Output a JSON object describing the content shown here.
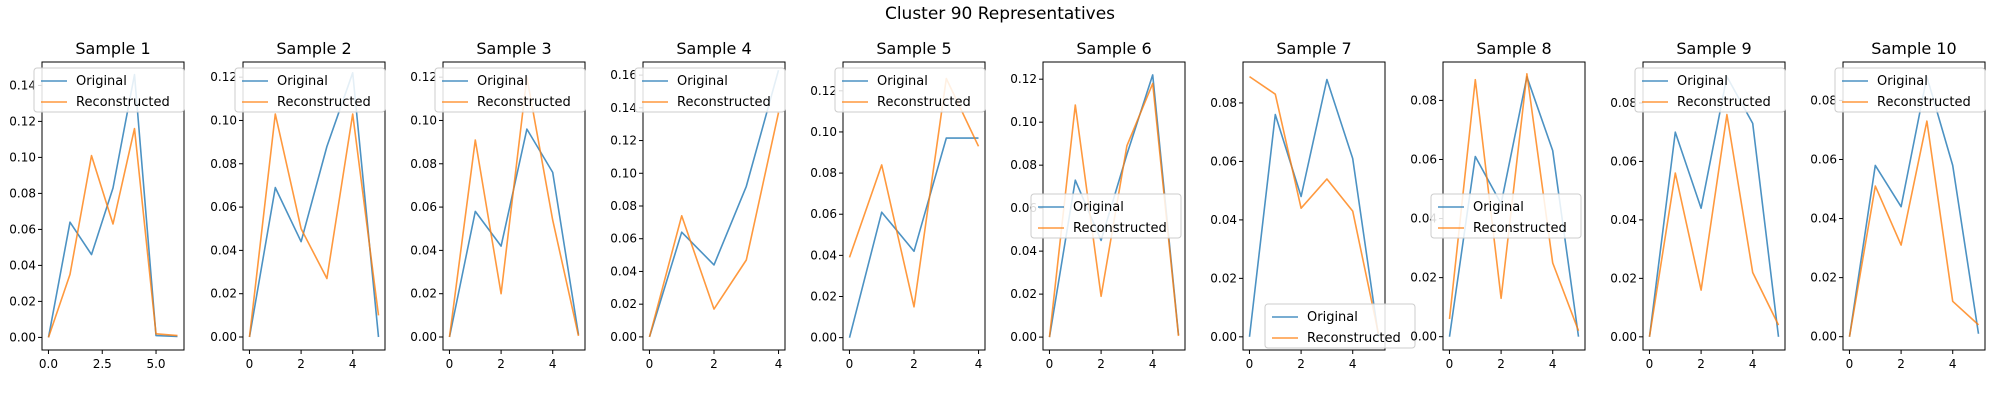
{
  "figure": {
    "title": "Cluster 90 Representatives"
  },
  "colors": {
    "original": "#1f77b4",
    "reconstructed": "#ff7f0e"
  },
  "chart_data": [
    {
      "type": "line",
      "title": "Sample 1",
      "xlim": [
        -0.3,
        6.3
      ],
      "ylim": [
        -0.007,
        0.153
      ],
      "xticks": [
        0,
        2.5,
        5
      ],
      "xtick_labels": [
        "0.0",
        "2.5",
        "5.0"
      ],
      "yticks": [
        0,
        0.02,
        0.04,
        0.06,
        0.08,
        0.1,
        0.12,
        0.14
      ],
      "ytick_labels": [
        "0.00",
        "0.02",
        "0.04",
        "0.06",
        "0.08",
        "0.10",
        "0.12",
        "0.14"
      ],
      "legend": "upper-left",
      "series": [
        {
          "name": "Original",
          "x": [
            0,
            1,
            2,
            3,
            4,
            5,
            6
          ],
          "values": [
            0,
            0.064,
            0.046,
            0.083,
            0.146,
            0.001,
            0.0005
          ]
        },
        {
          "name": "Reconstructed",
          "x": [
            0,
            1,
            2,
            3,
            4,
            5,
            6
          ],
          "values": [
            0,
            0.035,
            0.101,
            0.063,
            0.116,
            0.002,
            0.001
          ]
        }
      ]
    },
    {
      "type": "line",
      "title": "Sample 2",
      "xlim": [
        -0.25,
        5.25
      ],
      "ylim": [
        -0.006,
        0.127
      ],
      "xticks": [
        0,
        2,
        4
      ],
      "xtick_labels": [
        "0",
        "2",
        "4"
      ],
      "yticks": [
        0,
        0.02,
        0.04,
        0.06,
        0.08,
        0.1,
        0.12
      ],
      "ytick_labels": [
        "0.00",
        "0.02",
        "0.04",
        "0.06",
        "0.08",
        "0.10",
        "0.12"
      ],
      "legend": "upper-left",
      "series": [
        {
          "name": "Original",
          "x": [
            0,
            1,
            2,
            3,
            4,
            5
          ],
          "values": [
            0,
            0.069,
            0.044,
            0.088,
            0.122,
            0.0
          ]
        },
        {
          "name": "Reconstructed",
          "x": [
            0,
            1,
            2,
            3,
            4,
            5
          ],
          "values": [
            0,
            0.103,
            0.05,
            0.027,
            0.103,
            0.01
          ]
        }
      ]
    },
    {
      "type": "line",
      "title": "Sample 3",
      "xlim": [
        -0.25,
        5.25
      ],
      "ylim": [
        -0.006,
        0.127
      ],
      "xticks": [
        0,
        2,
        4
      ],
      "xtick_labels": [
        "0",
        "2",
        "4"
      ],
      "yticks": [
        0,
        0.02,
        0.04,
        0.06,
        0.08,
        0.1,
        0.12
      ],
      "ytick_labels": [
        "0.00",
        "0.02",
        "0.04",
        "0.06",
        "0.08",
        "0.10",
        "0.12"
      ],
      "legend": "upper-left",
      "series": [
        {
          "name": "Original",
          "x": [
            0,
            1,
            2,
            3,
            4,
            5
          ],
          "values": [
            0,
            0.058,
            0.042,
            0.096,
            0.076,
            0.001
          ]
        },
        {
          "name": "Reconstructed",
          "x": [
            0,
            1,
            2,
            3,
            4,
            5
          ],
          "values": [
            0,
            0.091,
            0.02,
            0.12,
            0.054,
            0.0005
          ]
        }
      ]
    },
    {
      "type": "line",
      "title": "Sample 4",
      "xlim": [
        -0.2,
        4.2
      ],
      "ylim": [
        -0.008,
        0.168
      ],
      "xticks": [
        0,
        2,
        4
      ],
      "xtick_labels": [
        "0",
        "2",
        "4"
      ],
      "yticks": [
        0,
        0.02,
        0.04,
        0.06,
        0.08,
        0.1,
        0.12,
        0.14,
        0.16
      ],
      "ytick_labels": [
        "0.00",
        "0.02",
        "0.04",
        "0.06",
        "0.08",
        "0.10",
        "0.12",
        "0.14",
        "0.16"
      ],
      "legend": "upper-left",
      "series": [
        {
          "name": "Original",
          "x": [
            0,
            1,
            2,
            3,
            4
          ],
          "values": [
            0,
            0.064,
            0.044,
            0.092,
            0.163
          ]
        },
        {
          "name": "Reconstructed",
          "x": [
            0,
            1,
            2,
            3,
            4
          ],
          "values": [
            0,
            0.074,
            0.017,
            0.047,
            0.137
          ]
        }
      ]
    },
    {
      "type": "line",
      "title": "Sample 5",
      "xlim": [
        -0.2,
        4.2
      ],
      "ylim": [
        -0.006,
        0.134
      ],
      "xticks": [
        0,
        2,
        4
      ],
      "xtick_labels": [
        "0",
        "2",
        "4"
      ],
      "yticks": [
        0,
        0.02,
        0.04,
        0.06,
        0.08,
        0.1,
        0.12
      ],
      "ytick_labels": [
        "0.00",
        "0.02",
        "0.04",
        "0.06",
        "0.08",
        "0.10",
        "0.12"
      ],
      "legend": "upper-left",
      "series": [
        {
          "name": "Original",
          "x": [
            0,
            1,
            2,
            3,
            4
          ],
          "values": [
            0,
            0.061,
            0.042,
            0.097,
            0.097
          ]
        },
        {
          "name": "Reconstructed",
          "x": [
            0,
            1,
            2,
            3,
            4
          ],
          "values": [
            0.039,
            0.084,
            0.015,
            0.126,
            0.093
          ]
        }
      ]
    },
    {
      "type": "line",
      "title": "Sample 6",
      "xlim": [
        -0.25,
        5.25
      ],
      "ylim": [
        -0.006,
        0.128
      ],
      "xticks": [
        0,
        2,
        4
      ],
      "xtick_labels": [
        "0",
        "2",
        "4"
      ],
      "yticks": [
        0,
        0.02,
        0.04,
        0.06,
        0.08,
        0.1,
        0.12
      ],
      "ytick_labels": [
        "0.00",
        "0.02",
        "0.04",
        "0.06",
        "0.08",
        "0.10",
        "0.12"
      ],
      "legend": "center-left",
      "series": [
        {
          "name": "Original",
          "x": [
            0,
            1,
            2,
            3,
            4,
            5
          ],
          "values": [
            0,
            0.073,
            0.045,
            0.085,
            0.122,
            0.001
          ]
        },
        {
          "name": "Reconstructed",
          "x": [
            0,
            1,
            2,
            3,
            4,
            5
          ],
          "values": [
            0,
            0.108,
            0.019,
            0.089,
            0.118,
            0.0005
          ]
        }
      ]
    },
    {
      "type": "line",
      "title": "Sample 7",
      "xlim": [
        -0.25,
        5.25
      ],
      "ylim": [
        -0.0045,
        0.094
      ],
      "xticks": [
        0,
        2,
        4
      ],
      "xtick_labels": [
        "0",
        "2",
        "4"
      ],
      "yticks": [
        0,
        0.02,
        0.04,
        0.06,
        0.08
      ],
      "ytick_labels": [
        "0.00",
        "0.02",
        "0.04",
        "0.06",
        "0.08"
      ],
      "legend": "lower-left",
      "series": [
        {
          "name": "Original",
          "x": [
            0,
            1,
            2,
            3,
            4,
            5
          ],
          "values": [
            0,
            0.076,
            0.048,
            0.088,
            0.061,
            0.0
          ]
        },
        {
          "name": "Reconstructed",
          "x": [
            0,
            1,
            2,
            3,
            4,
            5
          ],
          "values": [
            0.089,
            0.083,
            0.044,
            0.054,
            0.043,
            0.001
          ]
        }
      ]
    },
    {
      "type": "line",
      "title": "Sample 8",
      "xlim": [
        -0.25,
        5.25
      ],
      "ylim": [
        -0.0045,
        0.093
      ],
      "xticks": [
        0,
        2,
        4
      ],
      "xtick_labels": [
        "0",
        "2",
        "4"
      ],
      "yticks": [
        0,
        0.02,
        0.04,
        0.06,
        0.08
      ],
      "ytick_labels": [
        "0.00",
        "0.02",
        "0.04",
        "0.06",
        "0.08"
      ],
      "legend": "center-left",
      "series": [
        {
          "name": "Original",
          "x": [
            0,
            1,
            2,
            3,
            4,
            5
          ],
          "values": [
            0,
            0.061,
            0.045,
            0.088,
            0.063,
            0.0
          ]
        },
        {
          "name": "Reconstructed",
          "x": [
            0,
            1,
            2,
            3,
            4,
            5
          ],
          "values": [
            0.006,
            0.087,
            0.013,
            0.089,
            0.025,
            0.002
          ]
        }
      ]
    },
    {
      "type": "line",
      "title": "Sample 9",
      "xlim": [
        -0.25,
        5.25
      ],
      "ylim": [
        -0.0045,
        0.094
      ],
      "xticks": [
        0,
        2,
        4
      ],
      "xtick_labels": [
        "0",
        "2",
        "4"
      ],
      "yticks": [
        0,
        0.02,
        0.04,
        0.06,
        0.08
      ],
      "ytick_labels": [
        "0.00",
        "0.02",
        "0.04",
        "0.06",
        "0.08"
      ],
      "legend": "upper-left",
      "series": [
        {
          "name": "Original",
          "x": [
            0,
            1,
            2,
            3,
            4,
            5
          ],
          "values": [
            0,
            0.07,
            0.044,
            0.089,
            0.073,
            0.0
          ]
        },
        {
          "name": "Reconstructed",
          "x": [
            0,
            1,
            2,
            3,
            4,
            5
          ],
          "values": [
            0,
            0.056,
            0.016,
            0.076,
            0.022,
            0.004
          ]
        }
      ]
    },
    {
      "type": "line",
      "title": "Sample 10",
      "xlim": [
        -0.25,
        5.25
      ],
      "ylim": [
        -0.0045,
        0.093
      ],
      "xticks": [
        0,
        2,
        4
      ],
      "xtick_labels": [
        "0",
        "2",
        "4"
      ],
      "yticks": [
        0,
        0.02,
        0.04,
        0.06,
        0.08
      ],
      "ytick_labels": [
        "0.00",
        "0.02",
        "0.04",
        "0.06",
        "0.08"
      ],
      "legend": "upper-left",
      "series": [
        {
          "name": "Original",
          "x": [
            0,
            1,
            2,
            3,
            4,
            5
          ],
          "values": [
            0,
            0.058,
            0.044,
            0.088,
            0.058,
            0.001
          ]
        },
        {
          "name": "Reconstructed",
          "x": [
            0,
            1,
            2,
            3,
            4,
            5
          ],
          "values": [
            0,
            0.051,
            0.031,
            0.073,
            0.012,
            0.004
          ]
        }
      ]
    }
  ]
}
